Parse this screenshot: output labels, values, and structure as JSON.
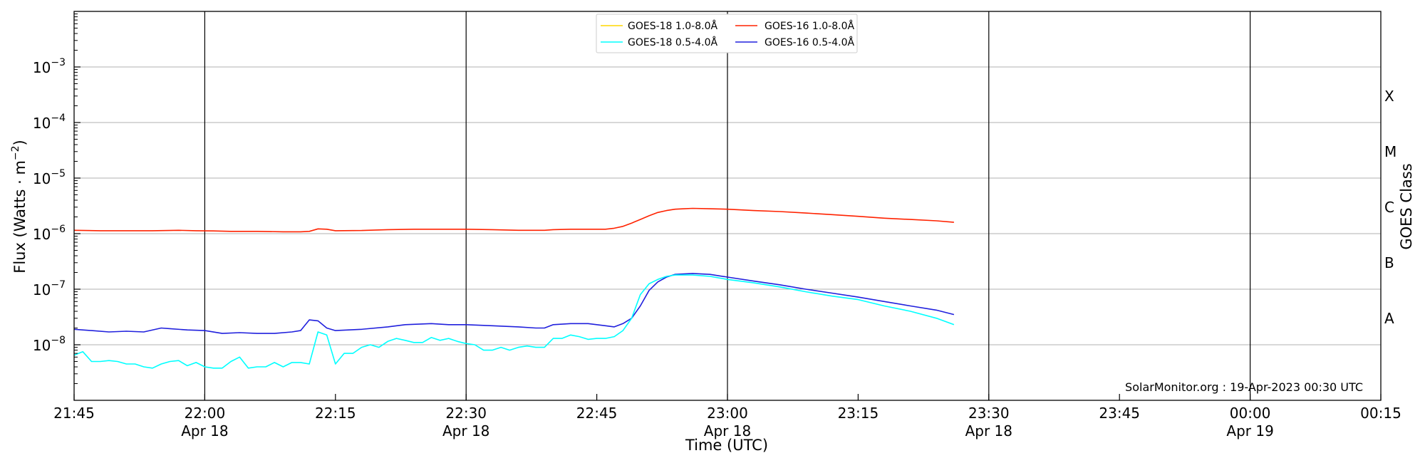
{
  "chart_data": {
    "type": "line",
    "xlabel": "Time (UTC)",
    "ylabel": "Flux (Watts · m",
    "ylabel_sup": "−2",
    "ylabel_close": ")",
    "y_right_label": "GOES Class",
    "y_scale": "log",
    "xlim": [
      "21:45",
      "00:15"
    ],
    "ylim": [
      1e-09,
      0.01
    ],
    "grid": "horizontal at decades, vertical at half-hours",
    "legend_position": "top-center",
    "x_ticks": [
      {
        "t": "21:45",
        "label": "21:45",
        "sub": ""
      },
      {
        "t": "22:00",
        "label": "22:00",
        "sub": "Apr 18"
      },
      {
        "t": "22:15",
        "label": "22:15",
        "sub": ""
      },
      {
        "t": "22:30",
        "label": "22:30",
        "sub": "Apr 18"
      },
      {
        "t": "22:45",
        "label": "22:45",
        "sub": ""
      },
      {
        "t": "23:00",
        "label": "23:00",
        "sub": "Apr 18"
      },
      {
        "t": "23:15",
        "label": "23:15",
        "sub": ""
      },
      {
        "t": "23:30",
        "label": "23:30",
        "sub": "Apr 18"
      },
      {
        "t": "23:45",
        "label": "23:45",
        "sub": ""
      },
      {
        "t": "00:00",
        "label": "00:00",
        "sub": "Apr 19"
      },
      {
        "t": "00:15",
        "label": "00:15",
        "sub": ""
      }
    ],
    "y_ticks": [
      {
        "v": 1e-08,
        "base": "10",
        "exp": "−8"
      },
      {
        "v": 1e-07,
        "base": "10",
        "exp": "−7"
      },
      {
        "v": 1e-06,
        "base": "10",
        "exp": "−6"
      },
      {
        "v": 1e-05,
        "base": "10",
        "exp": "−5"
      },
      {
        "v": 0.0001,
        "base": "10",
        "exp": "−4"
      },
      {
        "v": 0.001,
        "base": "10",
        "exp": "−3"
      }
    ],
    "goes_classes": [
      {
        "label": "A",
        "v": 3e-08
      },
      {
        "label": "B",
        "v": 3e-07
      },
      {
        "label": "C",
        "v": 3e-06
      },
      {
        "label": "M",
        "v": 3e-05
      },
      {
        "label": "X",
        "v": 0.0003
      }
    ],
    "vertical_lines": [
      "22:00",
      "22:30",
      "23:00",
      "23:30",
      "00:00"
    ],
    "legend": [
      {
        "name": "GOES-18 1.0-8.0Å",
        "color": "#ffd700"
      },
      {
        "name": "GOES-16 1.0-8.0Å",
        "color": "#ff2200"
      },
      {
        "name": "GOES-18 0.5-4.0Å",
        "color": "#00ffff"
      },
      {
        "name": "GOES-16 0.5-4.0Å",
        "color": "#2020dd"
      }
    ],
    "series": [
      {
        "name": "GOES-16 1.0-8.0Å",
        "color": "#ff2200",
        "x": [
          "21:45",
          "21:48",
          "21:51",
          "21:54",
          "21:57",
          "21:59",
          "22:01",
          "22:03",
          "22:06",
          "22:09",
          "22:11",
          "22:12",
          "22:13",
          "22:14",
          "22:15",
          "22:18",
          "22:21",
          "22:24",
          "22:27",
          "22:30",
          "22:33",
          "22:36",
          "22:39",
          "22:40",
          "22:42",
          "22:44",
          "22:46",
          "22:47",
          "22:48",
          "22:49",
          "22:50",
          "22:51",
          "22:52",
          "22:53",
          "22:54",
          "22:55",
          "22:56",
          "22:58",
          "23:00",
          "23:03",
          "23:06",
          "23:09",
          "23:12",
          "23:15",
          "23:18",
          "23:21",
          "23:24",
          "23:26"
        ],
        "values": [
          1.15e-06,
          1.13e-06,
          1.13e-06,
          1.13e-06,
          1.15e-06,
          1.13e-06,
          1.12e-06,
          1.1e-06,
          1.1e-06,
          1.08e-06,
          1.08e-06,
          1.1e-06,
          1.22e-06,
          1.2e-06,
          1.13e-06,
          1.14e-06,
          1.18e-06,
          1.2e-06,
          1.2e-06,
          1.2e-06,
          1.18e-06,
          1.15e-06,
          1.15e-06,
          1.18e-06,
          1.2e-06,
          1.2e-06,
          1.2e-06,
          1.25e-06,
          1.35e-06,
          1.55e-06,
          1.8e-06,
          2.1e-06,
          2.4e-06,
          2.6e-06,
          2.75e-06,
          2.8e-06,
          2.85e-06,
          2.8e-06,
          2.75e-06,
          2.6e-06,
          2.5e-06,
          2.35e-06,
          2.2e-06,
          2.05e-06,
          1.9e-06,
          1.8e-06,
          1.7e-06,
          1.6e-06
        ]
      },
      {
        "name": "GOES-16 0.5-4.0Å",
        "color": "#2020dd",
        "x": [
          "21:45",
          "21:47",
          "21:49",
          "21:51",
          "21:53",
          "21:55",
          "21:56",
          "21:58",
          "22:00",
          "22:02",
          "22:04",
          "22:06",
          "22:08",
          "22:10",
          "22:11",
          "22:12",
          "22:13",
          "22:14",
          "22:15",
          "22:18",
          "22:21",
          "22:23",
          "22:26",
          "22:28",
          "22:30",
          "22:33",
          "22:36",
          "22:38",
          "22:39",
          "22:40",
          "22:42",
          "22:44",
          "22:45",
          "22:46",
          "22:47",
          "22:48",
          "22:49",
          "22:50",
          "22:51",
          "22:52",
          "22:53",
          "22:54",
          "22:56",
          "22:58",
          "23:00",
          "23:03",
          "23:06",
          "23:09",
          "23:12",
          "23:15",
          "23:18",
          "23:21",
          "23:24",
          "23:26"
        ],
        "values": [
          1.9e-08,
          1.8e-08,
          1.7e-08,
          1.75e-08,
          1.7e-08,
          2e-08,
          1.95e-08,
          1.85e-08,
          1.8e-08,
          1.6e-08,
          1.65e-08,
          1.6e-08,
          1.6e-08,
          1.7e-08,
          1.8e-08,
          2.8e-08,
          2.7e-08,
          2e-08,
          1.8e-08,
          1.9e-08,
          2.1e-08,
          2.3e-08,
          2.4e-08,
          2.3e-08,
          2.3e-08,
          2.2e-08,
          2.1e-08,
          2e-08,
          2e-08,
          2.3e-08,
          2.4e-08,
          2.4e-08,
          2.3e-08,
          2.2e-08,
          2.1e-08,
          2.4e-08,
          3e-08,
          5e-08,
          9.5e-08,
          1.35e-07,
          1.65e-07,
          1.85e-07,
          1.92e-07,
          1.85e-07,
          1.65e-07,
          1.4e-07,
          1.2e-07,
          1e-07,
          8.5e-08,
          7.2e-08,
          6e-08,
          5e-08,
          4.2e-08,
          3.5e-08
        ]
      },
      {
        "name": "GOES-18 0.5-4.0Å",
        "color": "#00ffff",
        "x": [
          "21:45",
          "21:46",
          "21:47",
          "21:48",
          "21:49",
          "21:50",
          "21:51",
          "21:52",
          "21:53",
          "21:54",
          "21:55",
          "21:56",
          "21:57",
          "21:58",
          "21:59",
          "22:00",
          "22:01",
          "22:02",
          "22:03",
          "22:04",
          "22:05",
          "22:06",
          "22:07",
          "22:08",
          "22:09",
          "22:10",
          "22:11",
          "22:12",
          "22:13",
          "22:14",
          "22:15",
          "22:16",
          "22:17",
          "22:18",
          "22:19",
          "22:20",
          "22:21",
          "22:22",
          "22:23",
          "22:24",
          "22:25",
          "22:26",
          "22:27",
          "22:28",
          "22:29",
          "22:30",
          "22:31",
          "22:32",
          "22:33",
          "22:34",
          "22:35",
          "22:36",
          "22:37",
          "22:38",
          "22:39",
          "22:40",
          "22:41",
          "22:42",
          "22:43",
          "22:44",
          "22:45",
          "22:46",
          "22:47",
          "22:48",
          "22:49",
          "22:50",
          "22:51",
          "22:52",
          "22:53",
          "22:54",
          "22:56",
          "22:58",
          "23:00",
          "23:03",
          "23:06",
          "23:09",
          "23:12",
          "23:15",
          "23:18",
          "23:21",
          "23:24",
          "23:26"
        ],
        "values": [
          6.5e-09,
          7.5e-09,
          5e-09,
          5e-09,
          5.2e-09,
          5e-09,
          4.5e-09,
          4.5e-09,
          4e-09,
          3.8e-09,
          4.5e-09,
          5e-09,
          5.2e-09,
          4.2e-09,
          4.8e-09,
          4e-09,
          3.8e-09,
          3.8e-09,
          5e-09,
          6e-09,
          3.8e-09,
          4e-09,
          4e-09,
          4.8e-09,
          4e-09,
          4.8e-09,
          4.8e-09,
          4.5e-09,
          1.7e-08,
          1.5e-08,
          4.5e-09,
          7e-09,
          7e-09,
          9e-09,
          1e-08,
          9e-09,
          1.15e-08,
          1.3e-08,
          1.2e-08,
          1.1e-08,
          1.1e-08,
          1.35e-08,
          1.2e-08,
          1.3e-08,
          1.15e-08,
          1.05e-08,
          1e-08,
          8e-09,
          8e-09,
          9e-09,
          8e-09,
          9e-09,
          9.5e-09,
          9e-09,
          9e-09,
          1.3e-08,
          1.3e-08,
          1.5e-08,
          1.4e-08,
          1.25e-08,
          1.3e-08,
          1.3e-08,
          1.4e-08,
          1.8e-08,
          3e-08,
          8e-08,
          1.25e-07,
          1.5e-07,
          1.7e-07,
          1.8e-07,
          1.8e-07,
          1.7e-07,
          1.5e-07,
          1.3e-07,
          1.1e-07,
          9e-08,
          7.5e-08,
          6.5e-08,
          5e-08,
          4e-08,
          3e-08,
          2.3e-08
        ]
      },
      {
        "name": "GOES-18 1.0-8.0Å",
        "color": "#ffd700",
        "x": [],
        "values": []
      }
    ],
    "watermark": "SolarMonitor.org : 19-Apr-2023 00:30 UTC"
  }
}
